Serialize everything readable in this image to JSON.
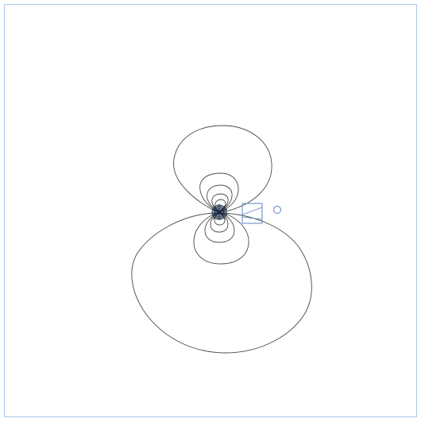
{
  "colors": {
    "background": "#ffffff",
    "frame": "#a9c6ec",
    "field_line": "#4a4a4a",
    "source_core": "#1b2a44",
    "selection_box": "#5b86c6",
    "handle_circle": "#5b86c6"
  },
  "canvas": {
    "frame_visible": true,
    "grid": false
  },
  "diagram": {
    "kind": "dipole field contour lines",
    "lobes": [
      "upper",
      "lower"
    ],
    "selection_marker": "selection-box",
    "handle_marker": "rotation-handle"
  }
}
